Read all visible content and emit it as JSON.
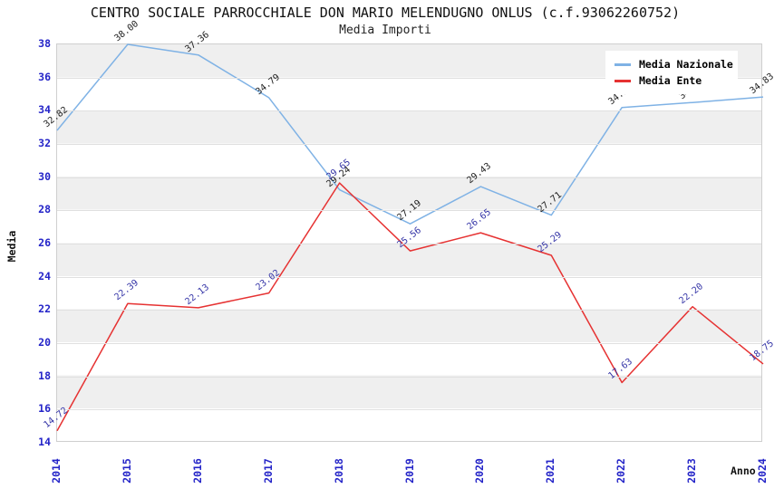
{
  "title": "CENTRO SOCIALE PARROCCHIALE DON MARIO MELENDUGNO ONLUS (c.f.93062260752)",
  "subtitle": "Media Importi",
  "chart_data": {
    "type": "line",
    "x_categories": [
      "2014",
      "2015",
      "2016",
      "2017",
      "2018",
      "2019",
      "2020",
      "2021",
      "2022",
      "2023",
      "2024"
    ],
    "xlabel": "Anno",
    "ylabel": "Media",
    "ylim": [
      14,
      38
    ],
    "yticks": [
      14,
      16,
      18,
      20,
      22,
      24,
      26,
      28,
      30,
      32,
      34,
      36,
      38
    ],
    "grid": "horizontal alternating gray/white bands",
    "legend_position": "top-right",
    "series": [
      {
        "name": "Media Nazionale",
        "color": "#7fb2e5",
        "label_color": "#1c1c1c",
        "values": [
          32.82,
          38.0,
          37.36,
          34.79,
          29.24,
          27.19,
          29.43,
          27.71,
          34.2,
          34.5,
          34.83
        ]
      },
      {
        "name": "Media Ente",
        "color": "#e63232",
        "label_color": "#3333a6",
        "values": [
          14.72,
          22.39,
          22.13,
          23.02,
          29.65,
          25.56,
          26.65,
          25.29,
          17.63,
          22.2,
          18.75
        ]
      }
    ],
    "colors": {
      "axis_tick_text": "#2424c8",
      "band_gray": "#efefef",
      "gridline": "#e0e0e0",
      "plot_border": "#cfcfcf",
      "background": "#ffffff"
    }
  }
}
